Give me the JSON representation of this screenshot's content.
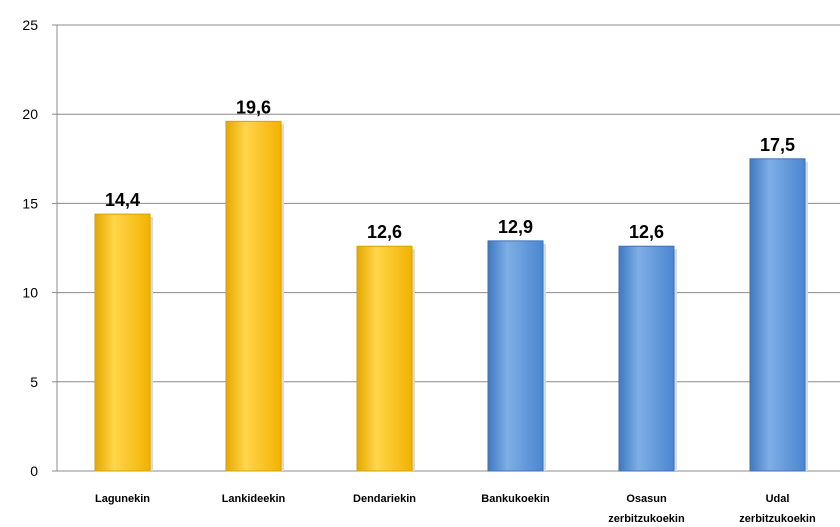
{
  "chart_data": {
    "type": "bar",
    "categories": [
      [
        "Lagunekin"
      ],
      [
        "Lankideekin"
      ],
      [
        "Dendariekin"
      ],
      [
        "Bankukoekin"
      ],
      [
        "Osasun",
        "zerbitzukoekin"
      ],
      [
        "Udal",
        "zerbitzukoekin"
      ]
    ],
    "values": [
      14.4,
      19.6,
      12.6,
      12.9,
      12.6,
      17.5
    ],
    "data_labels": [
      "14,4",
      "19,6",
      "12,6",
      "12,9",
      "12,6",
      "17,5"
    ],
    "bar_colors": [
      "#FFC000",
      "#FFC000",
      "#FFC000",
      "#558ED5",
      "#558ED5",
      "#558ED5"
    ],
    "ylim": [
      0,
      25
    ],
    "yticks": [
      0,
      5,
      10,
      15,
      20,
      25
    ],
    "grid": true,
    "legend": "none",
    "title": "",
    "xlabel": "",
    "ylabel": ""
  }
}
